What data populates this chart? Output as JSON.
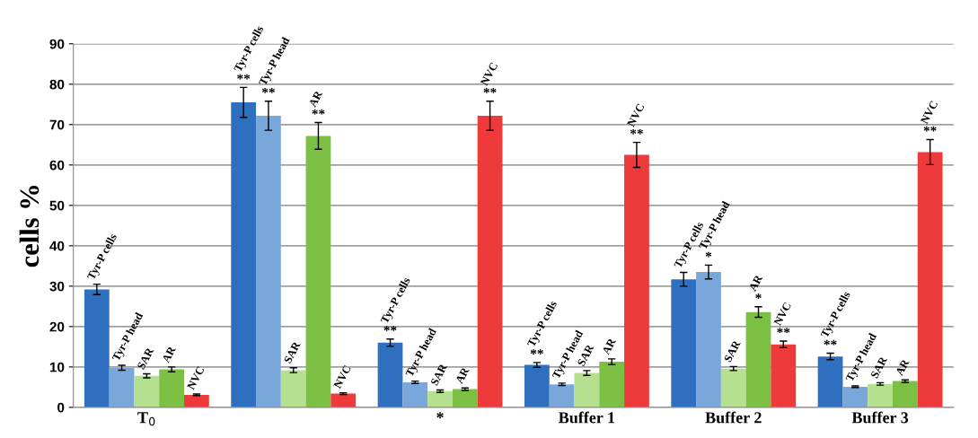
{
  "chart_data": {
    "type": "bar",
    "ylabel": "cells %",
    "categories": [
      "T$_{0}$",
      null,
      "*",
      "Buffer 1",
      "Buffer 2",
      "Buffer 3"
    ],
    "ylim": [
      0,
      90
    ],
    "yticks": [
      0,
      10,
      20,
      30,
      40,
      50,
      60,
      70,
      80,
      90
    ],
    "grid": "y",
    "legend": false,
    "series": [
      {
        "name": "Tyr-P cells",
        "color": "#2e6fc0",
        "values": [
          29.2,
          75.5,
          16.0,
          10.5,
          31.7,
          12.6
        ],
        "errors": [
          1.3,
          3.7,
          0.9,
          0.6,
          1.7,
          0.8
        ],
        "value_labels": [
          null,
          "**",
          "**",
          "**",
          null,
          "**"
        ]
      },
      {
        "name": "Tyr-P head",
        "color": "#7aa7da",
        "values": [
          9.8,
          72.2,
          6.2,
          5.7,
          33.5,
          5.1
        ],
        "errors": [
          0.6,
          3.6,
          0.3,
          0.3,
          1.7,
          0.2
        ],
        "value_labels": [
          null,
          "**",
          null,
          null,
          "*",
          null
        ]
      },
      {
        "name": "SAR",
        "color": "#b5e08f",
        "values": [
          7.8,
          9.2,
          4.0,
          8.5,
          9.6,
          5.8
        ],
        "errors": [
          0.5,
          0.6,
          0.3,
          0.6,
          0.5,
          0.3
        ]
      },
      {
        "name": "AR",
        "color": "#7bc043",
        "values": [
          9.4,
          67.2,
          4.5,
          11.3,
          23.6,
          6.5
        ],
        "errors": [
          0.6,
          3.3,
          0.3,
          0.7,
          1.3,
          0.3
        ],
        "value_labels": [
          null,
          "**",
          null,
          null,
          "*",
          null
        ]
      },
      {
        "name": "NVC",
        "color": "#ee3a3a",
        "values": [
          3.1,
          3.4,
          72.2,
          62.5,
          15.6,
          63.2
        ],
        "errors": [
          0.2,
          0.2,
          3.6,
          3.1,
          0.8,
          3.1
        ],
        "value_labels": [
          null,
          null,
          "**",
          "**",
          "**",
          "**"
        ]
      }
    ]
  }
}
